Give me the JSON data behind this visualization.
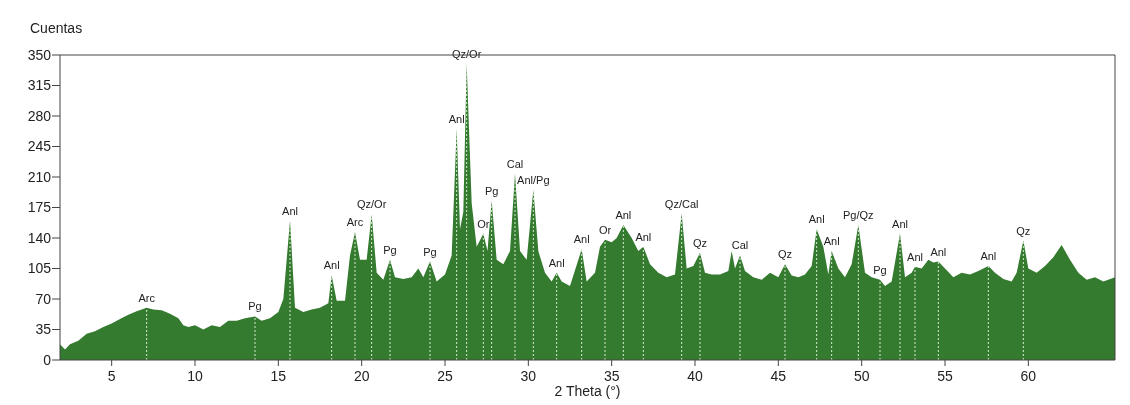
{
  "chart_data": {
    "type": "area",
    "ylabel": "Cuentas",
    "xlabel": "2 Theta (°)",
    "xlim": [
      1.9,
      65.2
    ],
    "ylim": [
      0,
      350
    ],
    "xticks": [
      5,
      10,
      15,
      20,
      25,
      30,
      35,
      40,
      45,
      50,
      55,
      60
    ],
    "yticks": [
      {
        "value": 0,
        "label": "0"
      },
      35,
      70,
      105,
      140,
      175,
      210,
      245,
      280,
      315,
      350
    ],
    "grid": false,
    "series": [
      {
        "color": "#347a2f",
        "x": [
          1.9,
          2.2,
          2.5,
          3,
          3.5,
          4,
          4.5,
          5,
          5.5,
          6,
          6.5,
          7.1,
          7.5,
          8,
          8.5,
          9,
          9.3,
          9.6,
          10,
          10.5,
          11,
          11.5,
          12,
          12.5,
          13,
          13.6,
          14,
          14.5,
          15,
          15.3,
          15.7,
          16,
          16.5,
          17,
          17.5,
          18,
          18.2,
          18.5,
          19,
          19.3,
          19.6,
          19.9,
          20.3,
          20.6,
          20.9,
          21.3,
          21.7,
          22,
          22.5,
          23,
          23.4,
          23.7,
          24.1,
          24.5,
          25,
          25.4,
          25.7,
          25.9,
          26.1,
          26.3,
          26.6,
          26.9,
          27.3,
          27.55,
          27.8,
          28.1,
          28.5,
          28.9,
          29.2,
          29.5,
          29.9,
          30.3,
          30.6,
          31,
          31.4,
          31.7,
          32,
          32.5,
          33.2,
          33.5,
          34,
          34.3,
          34.6,
          35,
          35.3,
          35.7,
          36.2,
          36.6,
          36.9,
          37.3,
          37.8,
          38.3,
          38.8,
          39.2,
          39.5,
          39.9,
          40.3,
          40.6,
          41,
          41.5,
          42,
          42.2,
          42.4,
          42.7,
          43,
          43.5,
          44,
          44.5,
          45,
          45.4,
          45.8,
          46.2,
          46.6,
          47,
          47.3,
          47.7,
          48,
          48.2,
          48.6,
          49,
          49.4,
          49.8,
          50.2,
          50.6,
          51.1,
          51.4,
          51.8,
          52.3,
          52.6,
          53,
          53.2,
          53.6,
          54,
          54.3,
          54.6,
          55,
          55.5,
          56,
          56.5,
          57,
          57.6,
          58,
          58.5,
          59,
          59.3,
          59.7,
          60,
          60.5,
          61,
          61.5,
          62,
          62.5,
          63,
          63.5,
          64,
          64.5,
          65.2
        ],
        "values": [
          18,
          12,
          18,
          22,
          30,
          33,
          38,
          42,
          47,
          52,
          56,
          60,
          58,
          57,
          53,
          48,
          40,
          38,
          40,
          35,
          40,
          38,
          45,
          45,
          48,
          50,
          45,
          48,
          55,
          70,
          160,
          60,
          55,
          58,
          60,
          65,
          97,
          68,
          68,
          120,
          147,
          115,
          115,
          167,
          100,
          92,
          115,
          95,
          93,
          95,
          105,
          95,
          113,
          90,
          98,
          120,
          265,
          150,
          170,
          340,
          180,
          130,
          145,
          125,
          183,
          115,
          110,
          125,
          214,
          125,
          115,
          195,
          125,
          100,
          90,
          100,
          90,
          85,
          127,
          90,
          100,
          130,
          138,
          135,
          140,
          155,
          140,
          125,
          130,
          110,
          100,
          95,
          98,
          168,
          105,
          108,
          123,
          100,
          98,
          98,
          102,
          125,
          105,
          120,
          102,
          95,
          92,
          100,
          95,
          110,
          97,
          95,
          98,
          108,
          150,
          130,
          98,
          125,
          105,
          95,
          110,
          155,
          100,
          95,
          92,
          85,
          90,
          145,
          95,
          100,
          107,
          105,
          115,
          112,
          113,
          105,
          95,
          100,
          98,
          102,
          108,
          100,
          93,
          90,
          100,
          137,
          105,
          100,
          108,
          118,
          132,
          115,
          100,
          92,
          95,
          90,
          95
        ]
      }
    ],
    "ref_lines": [
      {
        "axis": "x",
        "value": 7.1,
        "color": "#d8ecd0",
        "line_style": "dotted"
      },
      {
        "axis": "x",
        "value": 13.6,
        "color": "#d8ecd0",
        "line_style": "dotted"
      },
      {
        "axis": "x",
        "value": 15.7,
        "color": "#d8ecd0",
        "line_style": "dotted"
      },
      {
        "axis": "x",
        "value": 18.2,
        "color": "#d8ecd0",
        "line_style": "dotted"
      },
      {
        "axis": "x",
        "value": 19.6,
        "color": "#d8ecd0",
        "line_style": "dotted"
      },
      {
        "axis": "x",
        "value": 20.6,
        "color": "#d8ecd0",
        "line_style": "dotted"
      },
      {
        "axis": "x",
        "value": 21.7,
        "color": "#d8ecd0",
        "line_style": "dotted"
      },
      {
        "axis": "x",
        "value": 24.1,
        "color": "#d8ecd0",
        "line_style": "dotted"
      },
      {
        "axis": "x",
        "value": 25.7,
        "color": "#d8ecd0",
        "line_style": "dotted"
      },
      {
        "axis": "x",
        "value": 26.3,
        "color": "#d8ecd0",
        "line_style": "dotted"
      },
      {
        "axis": "x",
        "value": 27.3,
        "color": "#d8ecd0",
        "line_style": "dotted"
      },
      {
        "axis": "x",
        "value": 27.8,
        "color": "#d8ecd0",
        "line_style": "dotted"
      },
      {
        "axis": "x",
        "value": 29.2,
        "color": "#d8ecd0",
        "line_style": "dotted"
      },
      {
        "axis": "x",
        "value": 30.3,
        "color": "#d8ecd0",
        "line_style": "dotted"
      },
      {
        "axis": "x",
        "value": 31.7,
        "color": "#d8ecd0",
        "line_style": "dotted"
      },
      {
        "axis": "x",
        "value": 33.2,
        "color": "#d8ecd0",
        "line_style": "dotted"
      },
      {
        "axis": "x",
        "value": 34.6,
        "color": "#d8ecd0",
        "line_style": "dotted"
      },
      {
        "axis": "x",
        "value": 35.7,
        "color": "#d8ecd0",
        "line_style": "dotted"
      },
      {
        "axis": "x",
        "value": 36.9,
        "color": "#d8ecd0",
        "line_style": "dotted"
      },
      {
        "axis": "x",
        "value": 39.2,
        "color": "#d8ecd0",
        "line_style": "dotted"
      },
      {
        "axis": "x",
        "value": 40.3,
        "color": "#d8ecd0",
        "line_style": "dotted"
      },
      {
        "axis": "x",
        "value": 42.7,
        "color": "#d8ecd0",
        "line_style": "dotted"
      },
      {
        "axis": "x",
        "value": 45.4,
        "color": "#d8ecd0",
        "line_style": "dotted"
      },
      {
        "axis": "x",
        "value": 47.3,
        "color": "#d8ecd0",
        "line_style": "dotted"
      },
      {
        "axis": "x",
        "value": 48.2,
        "color": "#d8ecd0",
        "line_style": "dotted"
      },
      {
        "axis": "x",
        "value": 49.8,
        "color": "#d8ecd0",
        "line_style": "dotted"
      },
      {
        "axis": "x",
        "value": 51.1,
        "color": "#d8ecd0",
        "line_style": "dotted"
      },
      {
        "axis": "x",
        "value": 52.3,
        "color": "#d8ecd0",
        "line_style": "dotted"
      },
      {
        "axis": "x",
        "value": 53.2,
        "color": "#d8ecd0",
        "line_style": "dotted"
      },
      {
        "axis": "x",
        "value": 54.6,
        "color": "#d8ecd0",
        "line_style": "dotted"
      },
      {
        "axis": "x",
        "value": 57.6,
        "color": "#d8ecd0",
        "line_style": "dotted"
      },
      {
        "axis": "x",
        "value": 59.7,
        "color": "#d8ecd0",
        "line_style": "dotted"
      }
    ],
    "annotations": [
      {
        "text": "Arc",
        "x": 7.1,
        "y": 60
      },
      {
        "text": "Pg",
        "x": 13.6,
        "y": 50
      },
      {
        "text": "Anl",
        "x": 15.7,
        "y": 160
      },
      {
        "text": "Anl",
        "x": 18.2,
        "y": 97
      },
      {
        "text": "Arc",
        "x": 19.6,
        "y": 147
      },
      {
        "text": "Qz/Or",
        "x": 20.6,
        "y": 167
      },
      {
        "text": "Pg",
        "x": 21.7,
        "y": 115
      },
      {
        "text": "Pg",
        "x": 24.1,
        "y": 113
      },
      {
        "text": "Anl",
        "x": 25.7,
        "y": 265
      },
      {
        "text": "Qz/Or",
        "x": 26.3,
        "y": 340
      },
      {
        "text": "Or",
        "x": 27.3,
        "y": 145
      },
      {
        "text": "Pg",
        "x": 27.8,
        "y": 183
      },
      {
        "text": "Cal",
        "x": 29.2,
        "y": 214
      },
      {
        "text": "Anl/Pg",
        "x": 30.3,
        "y": 195
      },
      {
        "text": "Anl",
        "x": 31.7,
        "y": 100
      },
      {
        "text": "Anl",
        "x": 33.2,
        "y": 127
      },
      {
        "text": "Or",
        "x": 34.6,
        "y": 138
      },
      {
        "text": "Anl",
        "x": 35.7,
        "y": 155
      },
      {
        "text": "Anl",
        "x": 36.9,
        "y": 130
      },
      {
        "text": "Qz/Cal",
        "x": 39.2,
        "y": 168
      },
      {
        "text": "Qz",
        "x": 40.3,
        "y": 123
      },
      {
        "text": "Cal",
        "x": 42.7,
        "y": 120
      },
      {
        "text": "Qz",
        "x": 45.4,
        "y": 110
      },
      {
        "text": "Anl",
        "x": 47.3,
        "y": 150
      },
      {
        "text": "Anl",
        "x": 48.2,
        "y": 125
      },
      {
        "text": "Pg/Qz",
        "x": 49.8,
        "y": 155
      },
      {
        "text": "Pg",
        "x": 51.1,
        "y": 92
      },
      {
        "text": "Anl",
        "x": 52.3,
        "y": 145
      },
      {
        "text": "Anl",
        "x": 53.2,
        "y": 107
      },
      {
        "text": "Anl",
        "x": 54.6,
        "y": 113
      },
      {
        "text": "Anl",
        "x": 57.6,
        "y": 108
      },
      {
        "text": "Qz",
        "x": 59.7,
        "y": 137
      }
    ]
  }
}
